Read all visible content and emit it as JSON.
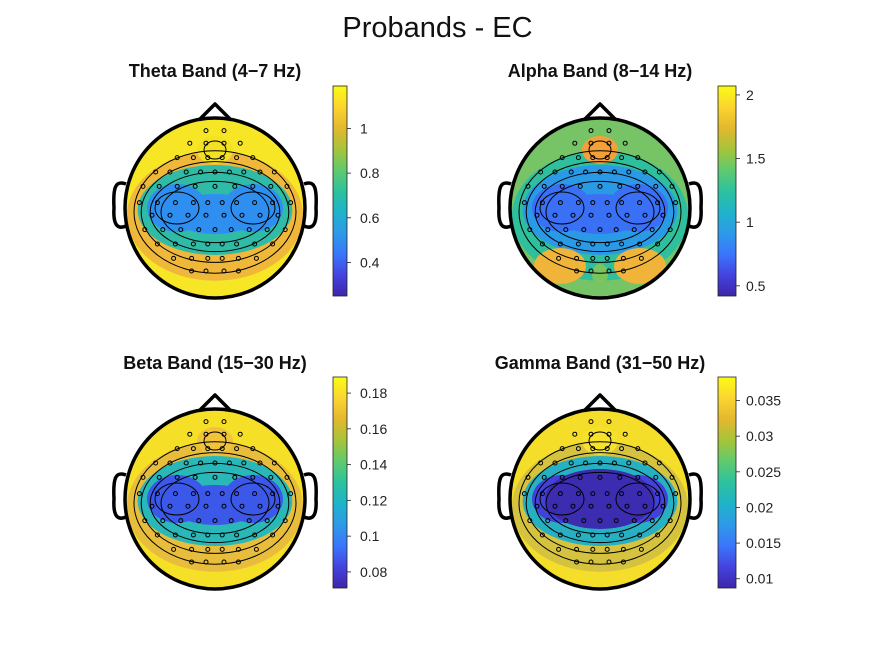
{
  "figure": {
    "title": "Probands - EC"
  },
  "colormap": [
    "#3e26a8",
    "#4443e0",
    "#3a76fb",
    "#2d9ae8",
    "#1fb3c9",
    "#2dc29e",
    "#5fca6e",
    "#a6c43a",
    "#e3b82e",
    "#fbd530",
    "#f9fb15"
  ],
  "chart_data": [
    {
      "type": "heatmap",
      "title": "Theta Band (4−7 Hz)",
      "colorbar": {
        "min": 0.25,
        "max": 1.19,
        "ticks": [
          0.4,
          0.6,
          0.8,
          1
        ],
        "tick_labels": [
          "0.4",
          "0.6",
          "0.8",
          "1"
        ]
      }
    },
    {
      "type": "heatmap",
      "title": "Alpha Band (8−14 Hz)",
      "colorbar": {
        "min": 0.42,
        "max": 2.07,
        "ticks": [
          0.5,
          1,
          1.5,
          2
        ],
        "tick_labels": [
          "0.5",
          "1",
          "1.5",
          "2"
        ]
      }
    },
    {
      "type": "heatmap",
      "title": "Beta Band (15−30 Hz)",
      "colorbar": {
        "min": 0.071,
        "max": 0.189,
        "ticks": [
          0.08,
          0.1,
          0.12,
          0.14,
          0.16,
          0.18
        ],
        "tick_labels": [
          "0.08",
          "0.1",
          "0.12",
          "0.14",
          "0.16",
          "0.18"
        ]
      }
    },
    {
      "type": "heatmap",
      "title": "Gamma Band (31−50 Hz)",
      "colorbar": {
        "min": 0.0087,
        "max": 0.0383,
        "ticks": [
          0.01,
          0.015,
          0.02,
          0.025,
          0.03,
          0.035
        ],
        "tick_labels": [
          "0.01",
          "0.015",
          "0.02",
          "0.025",
          "0.03",
          "0.035"
        ]
      }
    }
  ]
}
